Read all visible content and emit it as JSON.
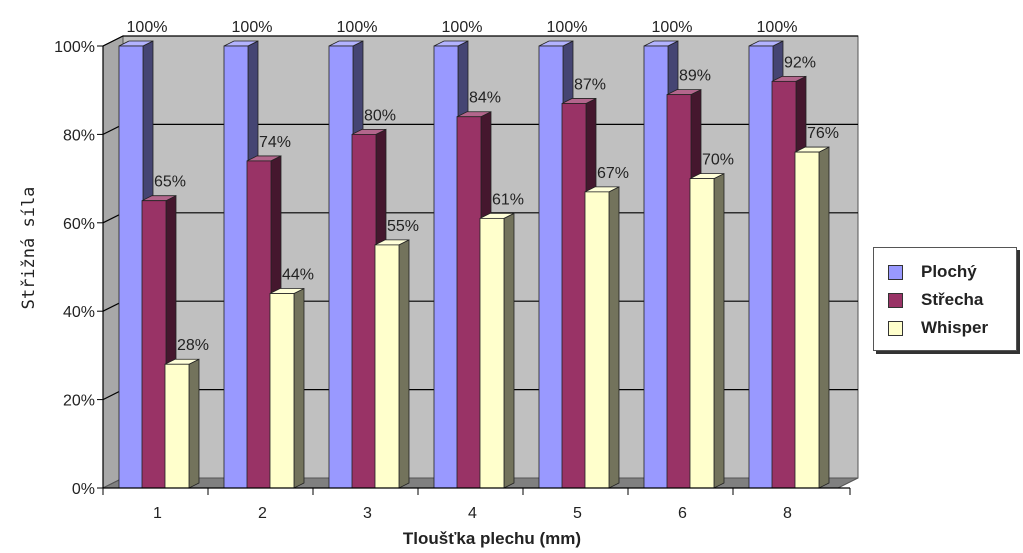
{
  "chart_data": {
    "type": "bar",
    "categories": [
      "1",
      "2",
      "3",
      "4",
      "5",
      "6",
      "8"
    ],
    "series": [
      {
        "name": "Plochý",
        "values": [
          100,
          100,
          100,
          100,
          100,
          100,
          100
        ],
        "color": "#9999ff"
      },
      {
        "name": "Střecha",
        "values": [
          65,
          74,
          80,
          84,
          87,
          89,
          92
        ],
        "color": "#993366"
      },
      {
        "name": "Whisper",
        "values": [
          28,
          44,
          55,
          61,
          67,
          70,
          76
        ],
        "color": "#ffffcc"
      }
    ],
    "data_labels": [
      [
        "100%",
        "100%",
        "100%",
        "100%",
        "100%",
        "100%",
        "100%"
      ],
      [
        "65%",
        "74%",
        "80%",
        "84%",
        "87%",
        "89%",
        "92%"
      ],
      [
        "28%",
        "44%",
        "55%",
        "61%",
        "67%",
        "70%",
        "76%"
      ]
    ],
    "xlabel": "Tloušťka plechu (mm)",
    "ylabel": "Střižná síla",
    "ylim": [
      0,
      100
    ],
    "yticks": [
      0,
      20,
      40,
      60,
      80,
      100
    ],
    "ytick_labels": [
      "0%",
      "20%",
      "40%",
      "60%",
      "80%",
      "100%"
    ],
    "grid": true,
    "legend_position": "right",
    "wall_color": "#c0c0c0",
    "floor_color": "#808080"
  }
}
